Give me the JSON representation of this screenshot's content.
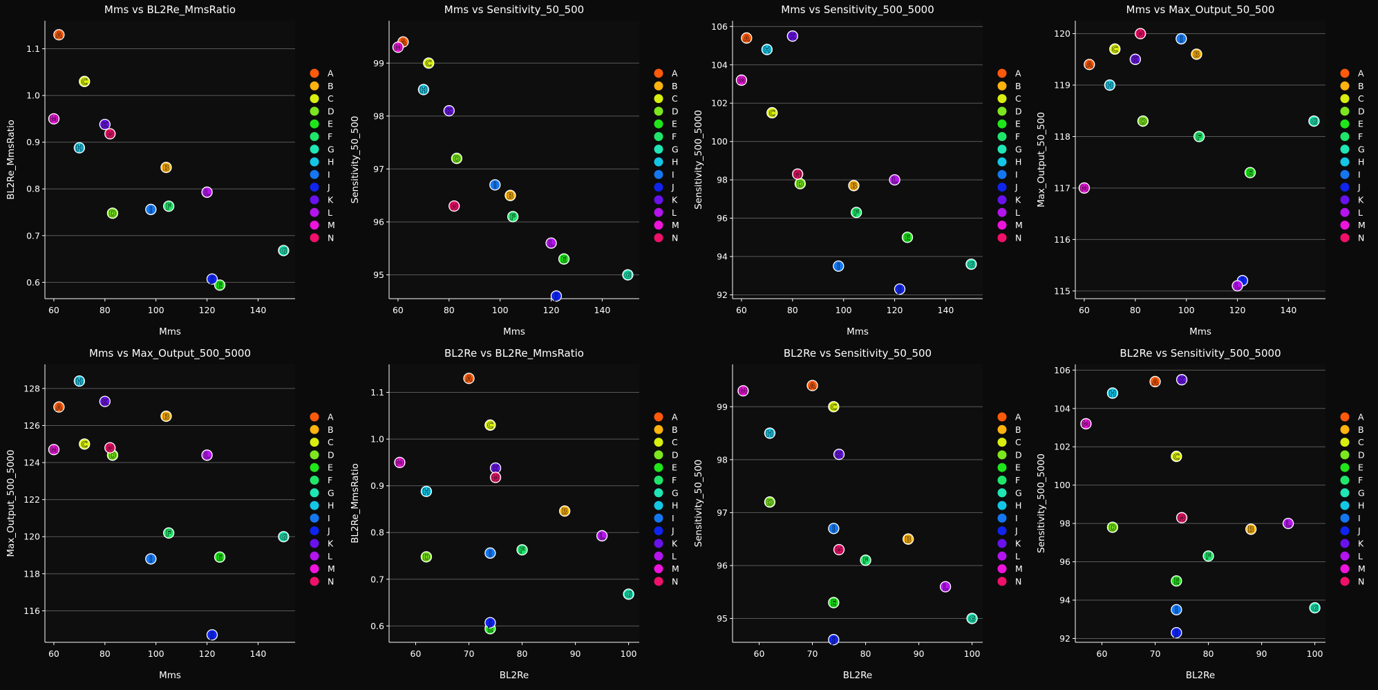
{
  "figure": {
    "background": "#0b0b0b",
    "plot_background": "#0e0e0e",
    "grid_color": "#5a5a5a"
  },
  "labels": [
    "A",
    "B",
    "C",
    "D",
    "E",
    "F",
    "G",
    "H",
    "I",
    "J",
    "K",
    "L",
    "M",
    "N"
  ],
  "colors": {
    "A": "#ff5a0a",
    "B": "#ffb30f",
    "C": "#d8ee0f",
    "D": "#7ce61e",
    "E": "#1fe61a",
    "F": "#1fe66b",
    "G": "#1fe6b4",
    "H": "#14c6e6",
    "I": "#1577f0",
    "J": "#1024f0",
    "K": "#6a12ec",
    "L": "#b414ee",
    "M": "#ee14dc",
    "N": "#f0106a"
  },
  "chart_data": [
    {
      "type": "scatter",
      "title": "Mms vs BL2Re_MmsRatio",
      "xlabel": "Mms",
      "ylabel": "BL2Re_MmsRatio",
      "xlim": [
        56.5,
        154.5
      ],
      "ylim": [
        0.565,
        1.16
      ],
      "xticks": [
        60,
        80,
        100,
        120,
        140
      ],
      "yticks": [
        0.6,
        0.7,
        0.8,
        0.9,
        1.0,
        1.1
      ],
      "ytick_decimals": 1,
      "points": [
        {
          "label": "A",
          "x": 62,
          "y": 1.13
        },
        {
          "label": "B",
          "x": 104,
          "y": 0.846
        },
        {
          "label": "C",
          "x": 72,
          "y": 1.03
        },
        {
          "label": "D",
          "x": 83,
          "y": 0.748
        },
        {
          "label": "E",
          "x": 125,
          "y": 0.594
        },
        {
          "label": "F",
          "x": 105,
          "y": 0.763
        },
        {
          "label": "G",
          "x": 150,
          "y": 0.668
        },
        {
          "label": "H",
          "x": 70,
          "y": 0.888
        },
        {
          "label": "I",
          "x": 98,
          "y": 0.756
        },
        {
          "label": "J",
          "x": 122,
          "y": 0.607
        },
        {
          "label": "K",
          "x": 80,
          "y": 0.938
        },
        {
          "label": "L",
          "x": 120,
          "y": 0.793
        },
        {
          "label": "M",
          "x": 60,
          "y": 0.95
        },
        {
          "label": "N",
          "x": 82,
          "y": 0.918
        }
      ]
    },
    {
      "type": "scatter",
      "title": "Mms vs Sensitivity_50_500",
      "xlabel": "Mms",
      "ylabel": "Sensitivity_50_500",
      "xlim": [
        56.5,
        154.5
      ],
      "ylim": [
        94.55,
        99.8
      ],
      "xticks": [
        60,
        80,
        100,
        120,
        140
      ],
      "yticks": [
        95,
        96,
        97,
        98,
        99
      ],
      "ytick_decimals": 0,
      "points": [
        {
          "label": "A",
          "x": 62,
          "y": 99.4
        },
        {
          "label": "B",
          "x": 104,
          "y": 96.5
        },
        {
          "label": "C",
          "x": 72,
          "y": 99.0
        },
        {
          "label": "D",
          "x": 83,
          "y": 97.2
        },
        {
          "label": "E",
          "x": 125,
          "y": 95.3
        },
        {
          "label": "F",
          "x": 105,
          "y": 96.1
        },
        {
          "label": "G",
          "x": 150,
          "y": 95.0
        },
        {
          "label": "H",
          "x": 70,
          "y": 98.5
        },
        {
          "label": "I",
          "x": 98,
          "y": 96.7
        },
        {
          "label": "J",
          "x": 122,
          "y": 94.6
        },
        {
          "label": "K",
          "x": 80,
          "y": 98.1
        },
        {
          "label": "L",
          "x": 120,
          "y": 95.6
        },
        {
          "label": "M",
          "x": 60,
          "y": 99.3
        },
        {
          "label": "N",
          "x": 82,
          "y": 96.3
        }
      ]
    },
    {
      "type": "scatter",
      "title": "Mms vs Sensitivity_500_5000",
      "xlabel": "Mms",
      "ylabel": "Sensitivity_500_5000",
      "xlim": [
        56.5,
        154.5
      ],
      "ylim": [
        91.8,
        106.3
      ],
      "xticks": [
        60,
        80,
        100,
        120,
        140
      ],
      "yticks": [
        92,
        94,
        96,
        98,
        100,
        102,
        104,
        106
      ],
      "ytick_decimals": 0,
      "points": [
        {
          "label": "A",
          "x": 62,
          "y": 105.4
        },
        {
          "label": "B",
          "x": 104,
          "y": 97.7
        },
        {
          "label": "C",
          "x": 72,
          "y": 101.5
        },
        {
          "label": "D",
          "x": 83,
          "y": 97.8
        },
        {
          "label": "E",
          "x": 125,
          "y": 95.0
        },
        {
          "label": "F",
          "x": 105,
          "y": 96.3
        },
        {
          "label": "G",
          "x": 150,
          "y": 93.6
        },
        {
          "label": "H",
          "x": 70,
          "y": 104.8
        },
        {
          "label": "I",
          "x": 98,
          "y": 93.5
        },
        {
          "label": "J",
          "x": 122,
          "y": 92.3
        },
        {
          "label": "K",
          "x": 80,
          "y": 105.5
        },
        {
          "label": "L",
          "x": 120,
          "y": 98.0
        },
        {
          "label": "M",
          "x": 60,
          "y": 103.2
        },
        {
          "label": "N",
          "x": 82,
          "y": 98.3
        }
      ]
    },
    {
      "type": "scatter",
      "title": "Mms vs Max_Output_50_500",
      "xlabel": "Mms",
      "ylabel": "Max_Output_50_500",
      "xlim": [
        56.5,
        154.5
      ],
      "ylim": [
        114.85,
        120.25
      ],
      "xticks": [
        60,
        80,
        100,
        120,
        140
      ],
      "yticks": [
        115,
        116,
        117,
        118,
        119,
        120
      ],
      "ytick_decimals": 0,
      "points": [
        {
          "label": "A",
          "x": 62,
          "y": 119.4
        },
        {
          "label": "B",
          "x": 104,
          "y": 119.6
        },
        {
          "label": "C",
          "x": 72,
          "y": 119.7
        },
        {
          "label": "D",
          "x": 83,
          "y": 118.3
        },
        {
          "label": "E",
          "x": 125,
          "y": 117.3
        },
        {
          "label": "F",
          "x": 105,
          "y": 118.0
        },
        {
          "label": "G",
          "x": 150,
          "y": 118.3
        },
        {
          "label": "H",
          "x": 70,
          "y": 119.0
        },
        {
          "label": "I",
          "x": 98,
          "y": 119.9
        },
        {
          "label": "J",
          "x": 122,
          "y": 115.2
        },
        {
          "label": "K",
          "x": 80,
          "y": 119.5
        },
        {
          "label": "L",
          "x": 120,
          "y": 115.1
        },
        {
          "label": "M",
          "x": 60,
          "y": 117.0
        },
        {
          "label": "N",
          "x": 82,
          "y": 120.0
        }
      ]
    },
    {
      "type": "scatter",
      "title": "Mms vs Max_Output_500_5000",
      "xlabel": "Mms",
      "ylabel": "Max_Output_500_5000",
      "xlim": [
        56.5,
        154.5
      ],
      "ylim": [
        114.3,
        129.3
      ],
      "xticks": [
        60,
        80,
        100,
        120,
        140
      ],
      "yticks": [
        116,
        118,
        120,
        122,
        124,
        126,
        128
      ],
      "ytick_decimals": 0,
      "points": [
        {
          "label": "A",
          "x": 62,
          "y": 127.0
        },
        {
          "label": "B",
          "x": 104,
          "y": 126.5
        },
        {
          "label": "C",
          "x": 72,
          "y": 125.0
        },
        {
          "label": "D",
          "x": 83,
          "y": 124.4
        },
        {
          "label": "E",
          "x": 125,
          "y": 118.9
        },
        {
          "label": "F",
          "x": 105,
          "y": 120.2
        },
        {
          "label": "G",
          "x": 150,
          "y": 120.0
        },
        {
          "label": "H",
          "x": 70,
          "y": 128.4
        },
        {
          "label": "I",
          "x": 98,
          "y": 118.8
        },
        {
          "label": "J",
          "x": 122,
          "y": 114.7
        },
        {
          "label": "K",
          "x": 80,
          "y": 127.3
        },
        {
          "label": "L",
          "x": 120,
          "y": 124.4
        },
        {
          "label": "M",
          "x": 60,
          "y": 124.7
        },
        {
          "label": "N",
          "x": 82,
          "y": 124.8
        }
      ]
    },
    {
      "type": "scatter",
      "title": "BL2Re vs BL2Re_MmsRatio",
      "xlabel": "BL2Re",
      "ylabel": "BL2Re_MmsRatio",
      "xlim": [
        55.0,
        102.0
      ],
      "ylim": [
        0.565,
        1.16
      ],
      "xticks": [
        60,
        70,
        80,
        90,
        100
      ],
      "yticks": [
        0.6,
        0.7,
        0.8,
        0.9,
        1.0,
        1.1
      ],
      "ytick_decimals": 1,
      "points": [
        {
          "label": "A",
          "x": 70,
          "y": 1.13
        },
        {
          "label": "B",
          "x": 88,
          "y": 0.846
        },
        {
          "label": "C",
          "x": 74,
          "y": 1.03
        },
        {
          "label": "D",
          "x": 62,
          "y": 0.748
        },
        {
          "label": "E",
          "x": 74,
          "y": 0.594
        },
        {
          "label": "F",
          "x": 80,
          "y": 0.763
        },
        {
          "label": "G",
          "x": 100,
          "y": 0.668
        },
        {
          "label": "H",
          "x": 62,
          "y": 0.888
        },
        {
          "label": "I",
          "x": 74,
          "y": 0.756
        },
        {
          "label": "J",
          "x": 74,
          "y": 0.607
        },
        {
          "label": "K",
          "x": 75,
          "y": 0.938
        },
        {
          "label": "L",
          "x": 95,
          "y": 0.793
        },
        {
          "label": "M",
          "x": 57,
          "y": 0.95
        },
        {
          "label": "N",
          "x": 75,
          "y": 0.918
        }
      ]
    },
    {
      "type": "scatter",
      "title": "BL2Re vs Sensitivity_50_500",
      "xlabel": "BL2Re",
      "ylabel": "Sensitivity_50_500",
      "xlim": [
        55.0,
        102.0
      ],
      "ylim": [
        94.55,
        99.8
      ],
      "xticks": [
        60,
        70,
        80,
        90,
        100
      ],
      "yticks": [
        95,
        96,
        97,
        98,
        99
      ],
      "ytick_decimals": 0,
      "points": [
        {
          "label": "A",
          "x": 70,
          "y": 99.4
        },
        {
          "label": "B",
          "x": 88,
          "y": 96.5
        },
        {
          "label": "C",
          "x": 74,
          "y": 99.0
        },
        {
          "label": "D",
          "x": 62,
          "y": 97.2
        },
        {
          "label": "E",
          "x": 74,
          "y": 95.3
        },
        {
          "label": "F",
          "x": 80,
          "y": 96.1
        },
        {
          "label": "G",
          "x": 100,
          "y": 95.0
        },
        {
          "label": "H",
          "x": 62,
          "y": 98.5
        },
        {
          "label": "I",
          "x": 74,
          "y": 96.7
        },
        {
          "label": "J",
          "x": 74,
          "y": 94.6
        },
        {
          "label": "K",
          "x": 75,
          "y": 98.1
        },
        {
          "label": "L",
          "x": 95,
          "y": 95.6
        },
        {
          "label": "M",
          "x": 57,
          "y": 99.3
        },
        {
          "label": "N",
          "x": 75,
          "y": 96.3
        }
      ]
    },
    {
      "type": "scatter",
      "title": "BL2Re vs Sensitivity_500_5000",
      "xlabel": "BL2Re",
      "ylabel": "Sensitivity_500_5000",
      "xlim": [
        55.0,
        102.0
      ],
      "ylim": [
        91.8,
        106.3
      ],
      "xticks": [
        60,
        70,
        80,
        90,
        100
      ],
      "yticks": [
        92,
        94,
        96,
        98,
        100,
        102,
        104,
        106
      ],
      "ytick_decimals": 0,
      "points": [
        {
          "label": "A",
          "x": 70,
          "y": 105.4
        },
        {
          "label": "B",
          "x": 88,
          "y": 97.7
        },
        {
          "label": "C",
          "x": 74,
          "y": 101.5
        },
        {
          "label": "D",
          "x": 62,
          "y": 97.8
        },
        {
          "label": "E",
          "x": 74,
          "y": 95.0
        },
        {
          "label": "F",
          "x": 80,
          "y": 96.3
        },
        {
          "label": "G",
          "x": 100,
          "y": 93.6
        },
        {
          "label": "H",
          "x": 62,
          "y": 104.8
        },
        {
          "label": "I",
          "x": 74,
          "y": 93.5
        },
        {
          "label": "J",
          "x": 74,
          "y": 92.3
        },
        {
          "label": "K",
          "x": 75,
          "y": 105.5
        },
        {
          "label": "L",
          "x": 95,
          "y": 98.0
        },
        {
          "label": "M",
          "x": 57,
          "y": 103.2
        },
        {
          "label": "N",
          "x": 75,
          "y": 98.3
        }
      ]
    }
  ]
}
